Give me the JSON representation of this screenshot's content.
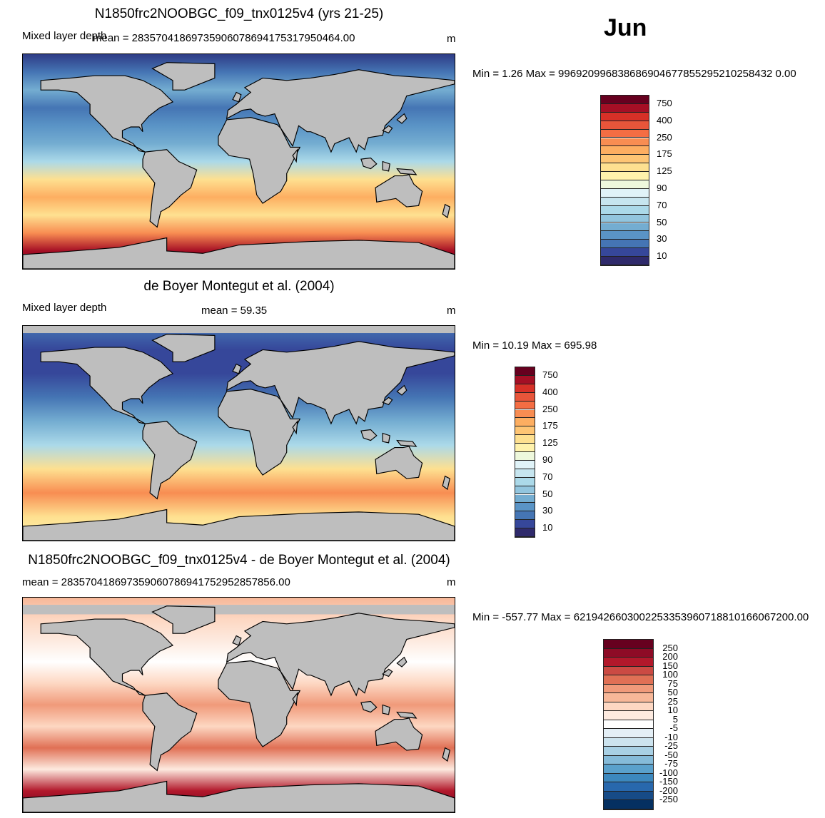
{
  "header": {
    "month": "Jun"
  },
  "panels": [
    {
      "title": "N1850frc2NOOBGC_f09_tnx0125v4 (yrs 21-25)",
      "variable": "Mixed layer depth",
      "mean": "mean = 28357041869735906078694175317950464.00",
      "units": "m",
      "minmax": "Min =   1.26 Max = 996920996838686904677855295210258432 0.00",
      "ocean_colors": [
        "#2e3c86",
        "#4575b4",
        "#74add1",
        "#4575b4",
        "#5a94c6",
        "#74add1",
        "#abd9e9",
        "#fee090",
        "#fdae61",
        "#fee090",
        "#f88d52",
        "#a50f25",
        "#67001f"
      ]
    },
    {
      "title": "de Boyer Montegut et al. (2004)",
      "variable": "Mixed layer depth",
      "mean": "mean =  59.35",
      "units": "m",
      "minmax": "Min =  10.19 Max = 695.98",
      "ocean_colors": [
        "#4575b4",
        "#36479a",
        "#36479a",
        "#4575b4",
        "#74add1",
        "#abd9e9",
        "#fee090",
        "#f88d52",
        "#fee090",
        "#fff2ac"
      ]
    },
    {
      "title": "N1850frc2NOOBGC_f09_tnx0125v4 - de Boyer Montegut et al. (2004)",
      "variable": "",
      "mean": "mean = 283570418697359060786941752952857856.00",
      "units": "m",
      "minmax": "Min = -557.77 Max = 6219426603002253353960718810166067200.00",
      "ocean_colors": [
        "#f7b798",
        "#fdd7c2",
        "#fdeadf",
        "#ffffff",
        "#fdd7c2",
        "#f09a7a",
        "#fdd7c2",
        "#e07055",
        "#fdeadf",
        "#b2182b",
        "#67001f"
      ]
    }
  ],
  "colorbars": {
    "mld": {
      "colors": [
        "#67001f",
        "#a50f25",
        "#d73027",
        "#e8553a",
        "#f46d43",
        "#f88d52",
        "#fdae61",
        "#fec574",
        "#fee090",
        "#fff2ac",
        "#eef8dc",
        "#e0f3f8",
        "#c6e5ef",
        "#abd9e9",
        "#92c5de",
        "#74add1",
        "#5a94c6",
        "#4575b4",
        "#36479a",
        "#2f2a6b"
      ],
      "labels": [
        "750",
        "400",
        "250",
        "175",
        "125",
        "90",
        "70",
        "50",
        "30",
        "10"
      ]
    },
    "diff": {
      "colors": [
        "#67001f",
        "#8e0b26",
        "#b2182b",
        "#cb4a43",
        "#e07055",
        "#f09a7a",
        "#f7b798",
        "#fdd7c2",
        "#fdeadf",
        "#ffffff",
        "#e4eff6",
        "#cce3ee",
        "#a8d0e4",
        "#85bbd9",
        "#5aa1cc",
        "#3c88be",
        "#2868ad",
        "#174b87",
        "#053061"
      ],
      "labels": [
        "250",
        "200",
        "150",
        "100",
        "75",
        "50",
        "25",
        "10",
        "5",
        "-5",
        "-10",
        "-25",
        "-50",
        "-75",
        "-100",
        "-150",
        "-200",
        "-250"
      ]
    }
  },
  "land_color": "#bebebe"
}
